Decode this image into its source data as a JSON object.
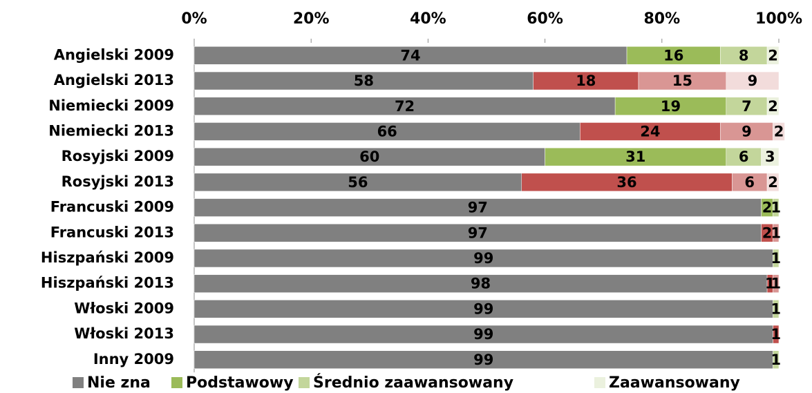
{
  "chart_data": {
    "type": "stacked_barh",
    "categories": [
      "Angielski 2009",
      "Angielski 2013",
      "Niemiecki 2009",
      "Niemiecki 2013",
      "Rosyjski 2009",
      "Rosyjski 2013",
      "Francuski 2009",
      "Francuski 2013",
      "Hiszpański 2009",
      "Hiszpański 2013",
      "Włoski 2009",
      "Włoski 2013",
      "Inny 2009"
    ],
    "series": [
      {
        "name": "Nie zna",
        "color": "#808080",
        "colors": [
          "#808080",
          "#808080",
          "#808080",
          "#808080",
          "#808080",
          "#808080",
          "#808080",
          "#808080",
          "#808080",
          "#808080",
          "#808080",
          "#808080",
          "#808080"
        ],
        "values": [
          74,
          58,
          72,
          66,
          60,
          56,
          97,
          97,
          99,
          98,
          99,
          99,
          99
        ]
      },
      {
        "name": "Podstawowy",
        "color": "#9bbb59",
        "colors": [
          "#9bbb59",
          "#c0504d",
          "#9bbb59",
          "#c0504d",
          "#9bbb59",
          "#c0504d",
          "#9bbb59",
          "#c0504d",
          "#9bbb59",
          "#c0504d",
          "#9bbb59",
          "#c0504d",
          "#9bbb59"
        ],
        "values": [
          16,
          18,
          19,
          24,
          31,
          36,
          2,
          2,
          null,
          1,
          null,
          1,
          null
        ]
      },
      {
        "name": "Średnio zaawansowany",
        "color": "#c3d69b",
        "colors": [
          "#c3d69b",
          "#d99694",
          "#c3d69b",
          "#d99694",
          "#c3d69b",
          "#d99694",
          "#c3d69b",
          "#d99694",
          "#c3d69b",
          "#d99694",
          "#c3d69b",
          "#d99694",
          "#c3d69b"
        ],
        "values": [
          8,
          15,
          7,
          9,
          6,
          6,
          1,
          1,
          1,
          1,
          1,
          null,
          1
        ]
      },
      {
        "name": "Zaawansowany",
        "color": "#ebf1de",
        "colors": [
          "#ebf1de",
          "#f2dcdb",
          "#ebf1de",
          "#f2dcdb",
          "#ebf1de",
          "#f2dcdb",
          "#ebf1de",
          "#f2dcdb",
          "#ebf1de",
          "#f2dcdb",
          "#ebf1de",
          "#f2dcdb",
          "#ebf1de"
        ],
        "values": [
          2,
          9,
          2,
          2,
          3,
          2,
          null,
          null,
          null,
          null,
          null,
          null,
          null
        ]
      }
    ],
    "xlim": [
      0,
      100
    ],
    "xticks": [
      {
        "value": 0,
        "label": "0%"
      },
      {
        "value": 20,
        "label": "20%"
      },
      {
        "value": 40,
        "label": "40%"
      },
      {
        "value": 60,
        "label": "60%"
      },
      {
        "value": 80,
        "label": "80%"
      },
      {
        "value": 100,
        "label": "100%"
      }
    ],
    "legend": "bottom"
  }
}
